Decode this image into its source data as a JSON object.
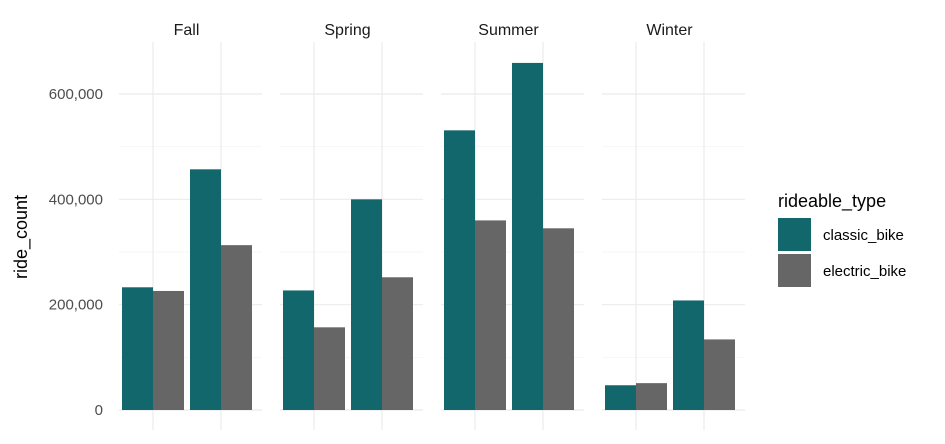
{
  "chart_data": {
    "type": "bar",
    "facets": [
      "Fall",
      "Spring",
      "Summer",
      "Winter"
    ],
    "ylabel": "ride_count",
    "ylim": [
      0,
      660000
    ],
    "yticks": [
      0,
      200000,
      400000,
      600000
    ],
    "ytick_labels": [
      "0",
      "200,000",
      "400,000",
      "600,000"
    ],
    "grid": true,
    "legend": {
      "title": "rideable_type",
      "position": "right",
      "items": [
        {
          "label": "classic_bike",
          "color": "#12676d"
        },
        {
          "label": "electric_bike",
          "color": "#666666"
        }
      ]
    },
    "panels": [
      {
        "facet": "Fall",
        "groups": [
          {
            "classic_bike": 233000,
            "electric_bike": 226000
          },
          {
            "classic_bike": 457000,
            "electric_bike": 313000
          }
        ]
      },
      {
        "facet": "Spring",
        "groups": [
          {
            "classic_bike": 227000,
            "electric_bike": 157000
          },
          {
            "classic_bike": 400000,
            "electric_bike": 252000
          }
        ]
      },
      {
        "facet": "Summer",
        "groups": [
          {
            "classic_bike": 531000,
            "electric_bike": 360000
          },
          {
            "classic_bike": 659000,
            "electric_bike": 345000
          }
        ]
      },
      {
        "facet": "Winter",
        "groups": [
          {
            "classic_bike": 47000,
            "electric_bike": 51000
          },
          {
            "classic_bike": 208000,
            "electric_bike": 134000
          }
        ]
      }
    ]
  }
}
